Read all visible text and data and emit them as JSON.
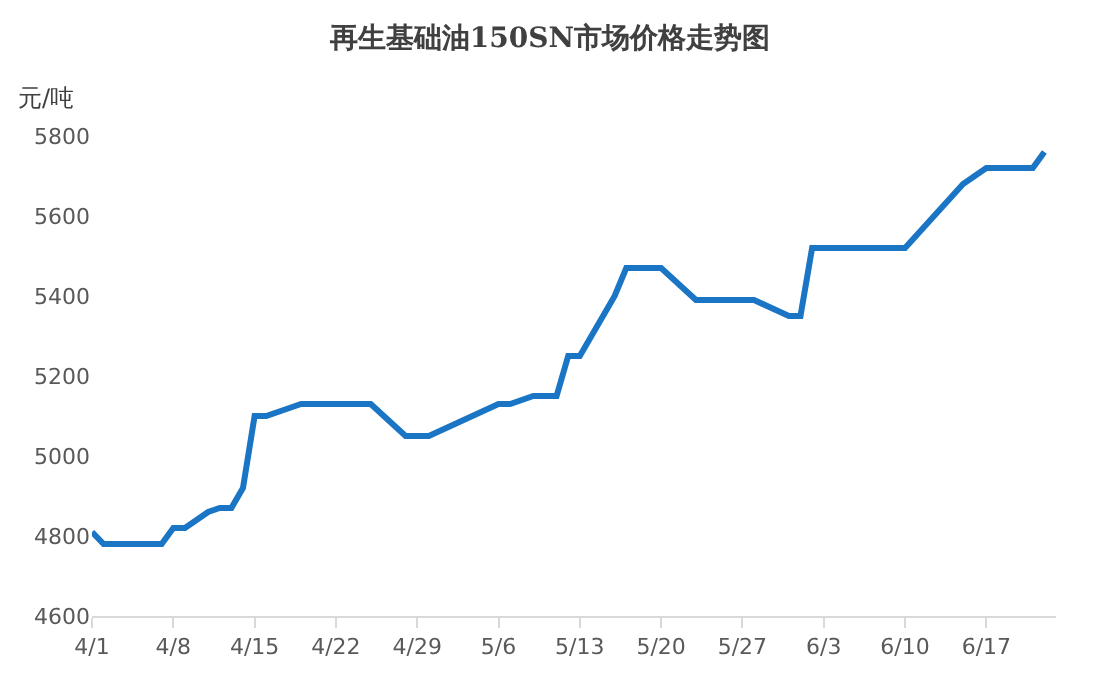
{
  "chart_data": {
    "type": "line",
    "title": "再生基础油150SN市场价格走势图",
    "ylabel": "元/吨",
    "x": [
      "--04-01",
      "--04-02",
      "--04-07",
      "--04-08",
      "--04-09",
      "--04-10",
      "--04-11",
      "--04-12",
      "--04-13",
      "--04-14",
      "--04-15",
      "--04-16",
      "--04-18",
      "--04-19",
      "--04-25",
      "--04-28",
      "--04-30",
      "--05-06",
      "--05-07",
      "--05-09",
      "--05-11",
      "--05-12",
      "--05-13",
      "--05-16",
      "--05-17",
      "--05-20",
      "--05-23",
      "--05-28",
      "--05-31",
      "--06-01",
      "--06-02",
      "--06-10",
      "--06-15",
      "--06-16",
      "--06-17",
      "--06-21",
      "--06-22"
    ],
    "series": [
      {
        "color": "#1a75c4",
        "values": [
          4810,
          4780,
          4780,
          4820,
          4820,
          4840,
          4860,
          4870,
          4870,
          4920,
          5100,
          5100,
          5120,
          5130,
          5130,
          5050,
          5050,
          5130,
          5130,
          5150,
          5150,
          5250,
          5250,
          5400,
          5470,
          5470,
          5390,
          5390,
          5350,
          5350,
          5520,
          5520,
          5680,
          5700,
          5720,
          5720,
          5760
        ]
      }
    ],
    "xlim": [
      "--04-01",
      "--06-23"
    ],
    "xticks": [
      {
        "value": "--04-01",
        "label": "4/1"
      },
      {
        "value": "--04-08",
        "label": "4/8"
      },
      {
        "value": "--04-15",
        "label": "4/15"
      },
      {
        "value": "--04-22",
        "label": "4/22"
      },
      {
        "value": "--04-29",
        "label": "4/29"
      },
      {
        "value": "--05-06",
        "label": "5/6"
      },
      {
        "value": "--05-13",
        "label": "5/13"
      },
      {
        "value": "--05-20",
        "label": "5/20"
      },
      {
        "value": "--05-27",
        "label": "5/27"
      },
      {
        "value": "--06-03",
        "label": "6/3"
      },
      {
        "value": "--06-10",
        "label": "6/10"
      },
      {
        "value": "--06-17",
        "label": "6/17"
      }
    ],
    "ylim": [
      4600,
      5800
    ],
    "yticks": [
      4600,
      4800,
      5000,
      5200,
      5400,
      5600,
      5800
    ],
    "grid": false,
    "marker": "none",
    "line_style": "solid"
  }
}
